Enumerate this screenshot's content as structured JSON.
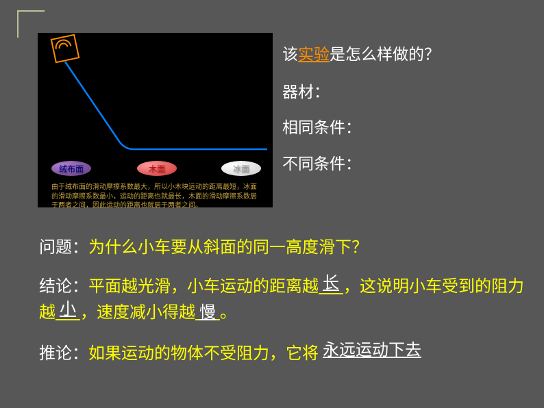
{
  "corner_accent_color": "#c0c097",
  "diagram": {
    "bg_color": "#000000",
    "block_color": "#ff8c00",
    "line_color": "#0080ff",
    "line_path": "M 40 42 L 120 160 Q 128 170 140 170 L 335 170",
    "line_width": 2.5,
    "surfaces": [
      {
        "label": "绒布面",
        "color_outer": "#5a3a7a",
        "color_inner": "#b080d0",
        "text_color": "#000080"
      },
      {
        "label": "木面",
        "color_outer": "#cc3333",
        "color_inner": "#ff9999",
        "text_color": "#cc0000"
      },
      {
        "label": "冰面",
        "color_outer": "#cccccc",
        "color_inner": "#ffffff",
        "text_color": "#999999"
      }
    ],
    "caption_color": "#c0a040",
    "caption": "由于绒布面的滑动摩擦系数最大，所以小木块运动的距离最短，冰面的滑动摩擦系数最小，运动的距离也就最长，木面的滑动摩擦系数居于两者之间，因此运动的距离也就居于两者之间。"
  },
  "right_panel": {
    "line1_prefix": "该",
    "line1_link": "实验",
    "line1_suffix": "是怎么样做的？",
    "line2": "器材：",
    "line3": "相同条件：",
    "line4": "不同条件："
  },
  "question": {
    "label": "问题：",
    "text": "为什么小车要从斜面的同一高度滑下？"
  },
  "conclusion": {
    "label": "结论：",
    "part1": "平面越光滑，小车运动的距离越",
    "blank1": "长",
    "part2": "，这说明小车受到的阻力越",
    "blank2": "小",
    "part3": "，速度减小得越",
    "blank3": "慢",
    "part4": "。"
  },
  "inference": {
    "label": "推论：",
    "part1": "如果运动的物体不受阻力，它将",
    "blank1": "永远运动下去"
  },
  "colors": {
    "slide_bg": "#575757",
    "white": "#ffffff",
    "yellow": "#ffff00",
    "link": "#ff8c00"
  },
  "fonts": {
    "body_size": 24,
    "right_size": 23,
    "caption_size": 10
  }
}
